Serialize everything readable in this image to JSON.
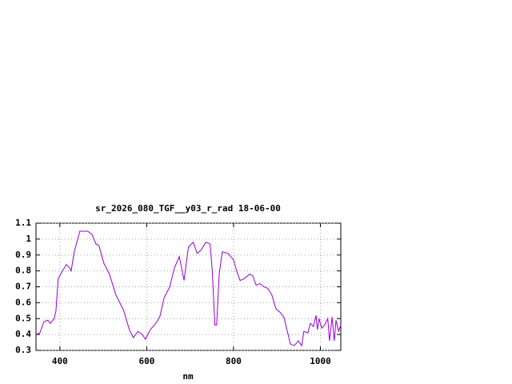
{
  "chart_data": {
    "type": "line",
    "title": "sr_2026_080_TGF__y03_r_rad 18-06-00",
    "x_label": "nm",
    "x": [
      345,
      354,
      363,
      372,
      378,
      387,
      391,
      396,
      406,
      415,
      422,
      426,
      433,
      446,
      464,
      474,
      483,
      490,
      501,
      514,
      529,
      538,
      547,
      560,
      569,
      580,
      590,
      597,
      608,
      621,
      630,
      640,
      653,
      664,
      675,
      686,
      696,
      707,
      716,
      725,
      736,
      746,
      751,
      757,
      761,
      767,
      774,
      787,
      800,
      807,
      815,
      824,
      837,
      844,
      852,
      861,
      870,
      879,
      888,
      898,
      907,
      916,
      922,
      931,
      940,
      949,
      957,
      962,
      971,
      977,
      984,
      990,
      993,
      997,
      1003,
      1010,
      1017,
      1021,
      1027,
      1032,
      1036,
      1042,
      1047
    ],
    "series": [
      {
        "color": "#9400d3",
        "values": [
          0.4,
          0.41,
          0.48,
          0.49,
          0.47,
          0.5,
          0.55,
          0.75,
          0.8,
          0.84,
          0.82,
          0.8,
          0.92,
          1.05,
          1.05,
          1.03,
          0.97,
          0.96,
          0.85,
          0.78,
          0.65,
          0.6,
          0.55,
          0.43,
          0.38,
          0.42,
          0.4,
          0.37,
          0.43,
          0.47,
          0.51,
          0.63,
          0.7,
          0.82,
          0.89,
          0.74,
          0.95,
          0.98,
          0.91,
          0.93,
          0.98,
          0.97,
          0.8,
          0.46,
          0.46,
          0.78,
          0.92,
          0.91,
          0.87,
          0.8,
          0.74,
          0.75,
          0.78,
          0.77,
          0.71,
          0.72,
          0.7,
          0.69,
          0.65,
          0.56,
          0.54,
          0.51,
          0.44,
          0.34,
          0.33,
          0.36,
          0.33,
          0.42,
          0.41,
          0.47,
          0.45,
          0.52,
          0.43,
          0.5,
          0.44,
          0.46,
          0.5,
          0.36,
          0.51,
          0.36,
          0.49,
          0.42,
          0.46
        ]
      }
    ],
    "xlim": [
      345,
      1047
    ],
    "xticks": [
      400,
      600,
      800,
      1000
    ],
    "ylim": [
      0.3,
      1.1
    ],
    "yticks": [
      0.3,
      0.4,
      0.5,
      0.6,
      0.7,
      0.8,
      0.9,
      1,
      1.1
    ],
    "grid": true
  }
}
